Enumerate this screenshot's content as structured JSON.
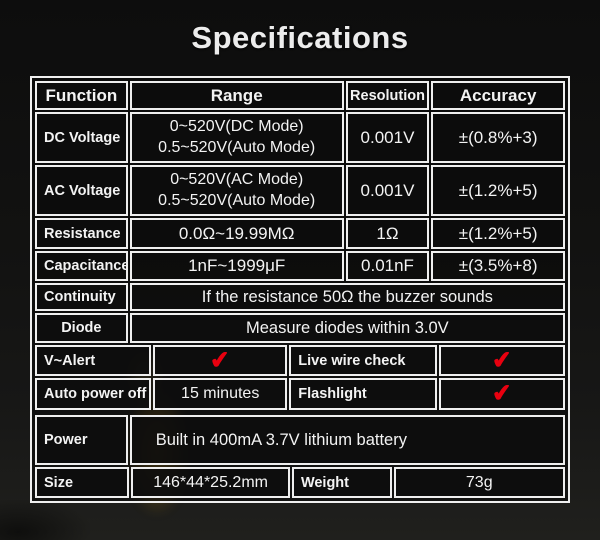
{
  "title": "Specifications",
  "colors": {
    "check_red": "#e8000f"
  },
  "icons": {
    "check": "✔"
  },
  "table": {
    "header": {
      "function": "Function",
      "range": "Range",
      "resolution": "Resolution",
      "accuracy": "Accuracy"
    },
    "dc_voltage": {
      "label": "DC Voltage",
      "range_line1": "0~520V(DC Mode)",
      "range_line2": "0.5~520V(Auto Mode)",
      "resolution": "0.001V",
      "accuracy": "±(0.8%+3)"
    },
    "ac_voltage": {
      "label": "AC Voltage",
      "range_line1": "0~520V(AC Mode)",
      "range_line2": "0.5~520V(Auto Mode)",
      "resolution": "0.001V",
      "accuracy": "±(1.2%+5)"
    },
    "resistance": {
      "label": "Resistance",
      "range": "0.0Ω~19.99MΩ",
      "resolution": "1Ω",
      "accuracy": "±(1.2%+5)"
    },
    "capacitance": {
      "label": "Capacitance",
      "range": "1nF~1999μF",
      "resolution": "0.01nF",
      "accuracy": "±(3.5%+8)"
    },
    "continuity": {
      "label": "Continuity",
      "description": "If the resistance 50Ω the buzzer sounds"
    },
    "diode": {
      "label": "Diode",
      "description": "Measure diodes within 3.0V"
    },
    "v_alert": {
      "label": "V~Alert",
      "label2": "Live wire check"
    },
    "auto_power_off": {
      "label": "Auto power off",
      "value": "15 minutes",
      "label2": "Flashlight"
    },
    "power": {
      "label": "Power",
      "description": "Built in 400mA 3.7V lithium battery"
    },
    "size": {
      "label": "Size",
      "value": "146*44*25.2mm",
      "label2": "Weight",
      "value2": "73g"
    }
  }
}
